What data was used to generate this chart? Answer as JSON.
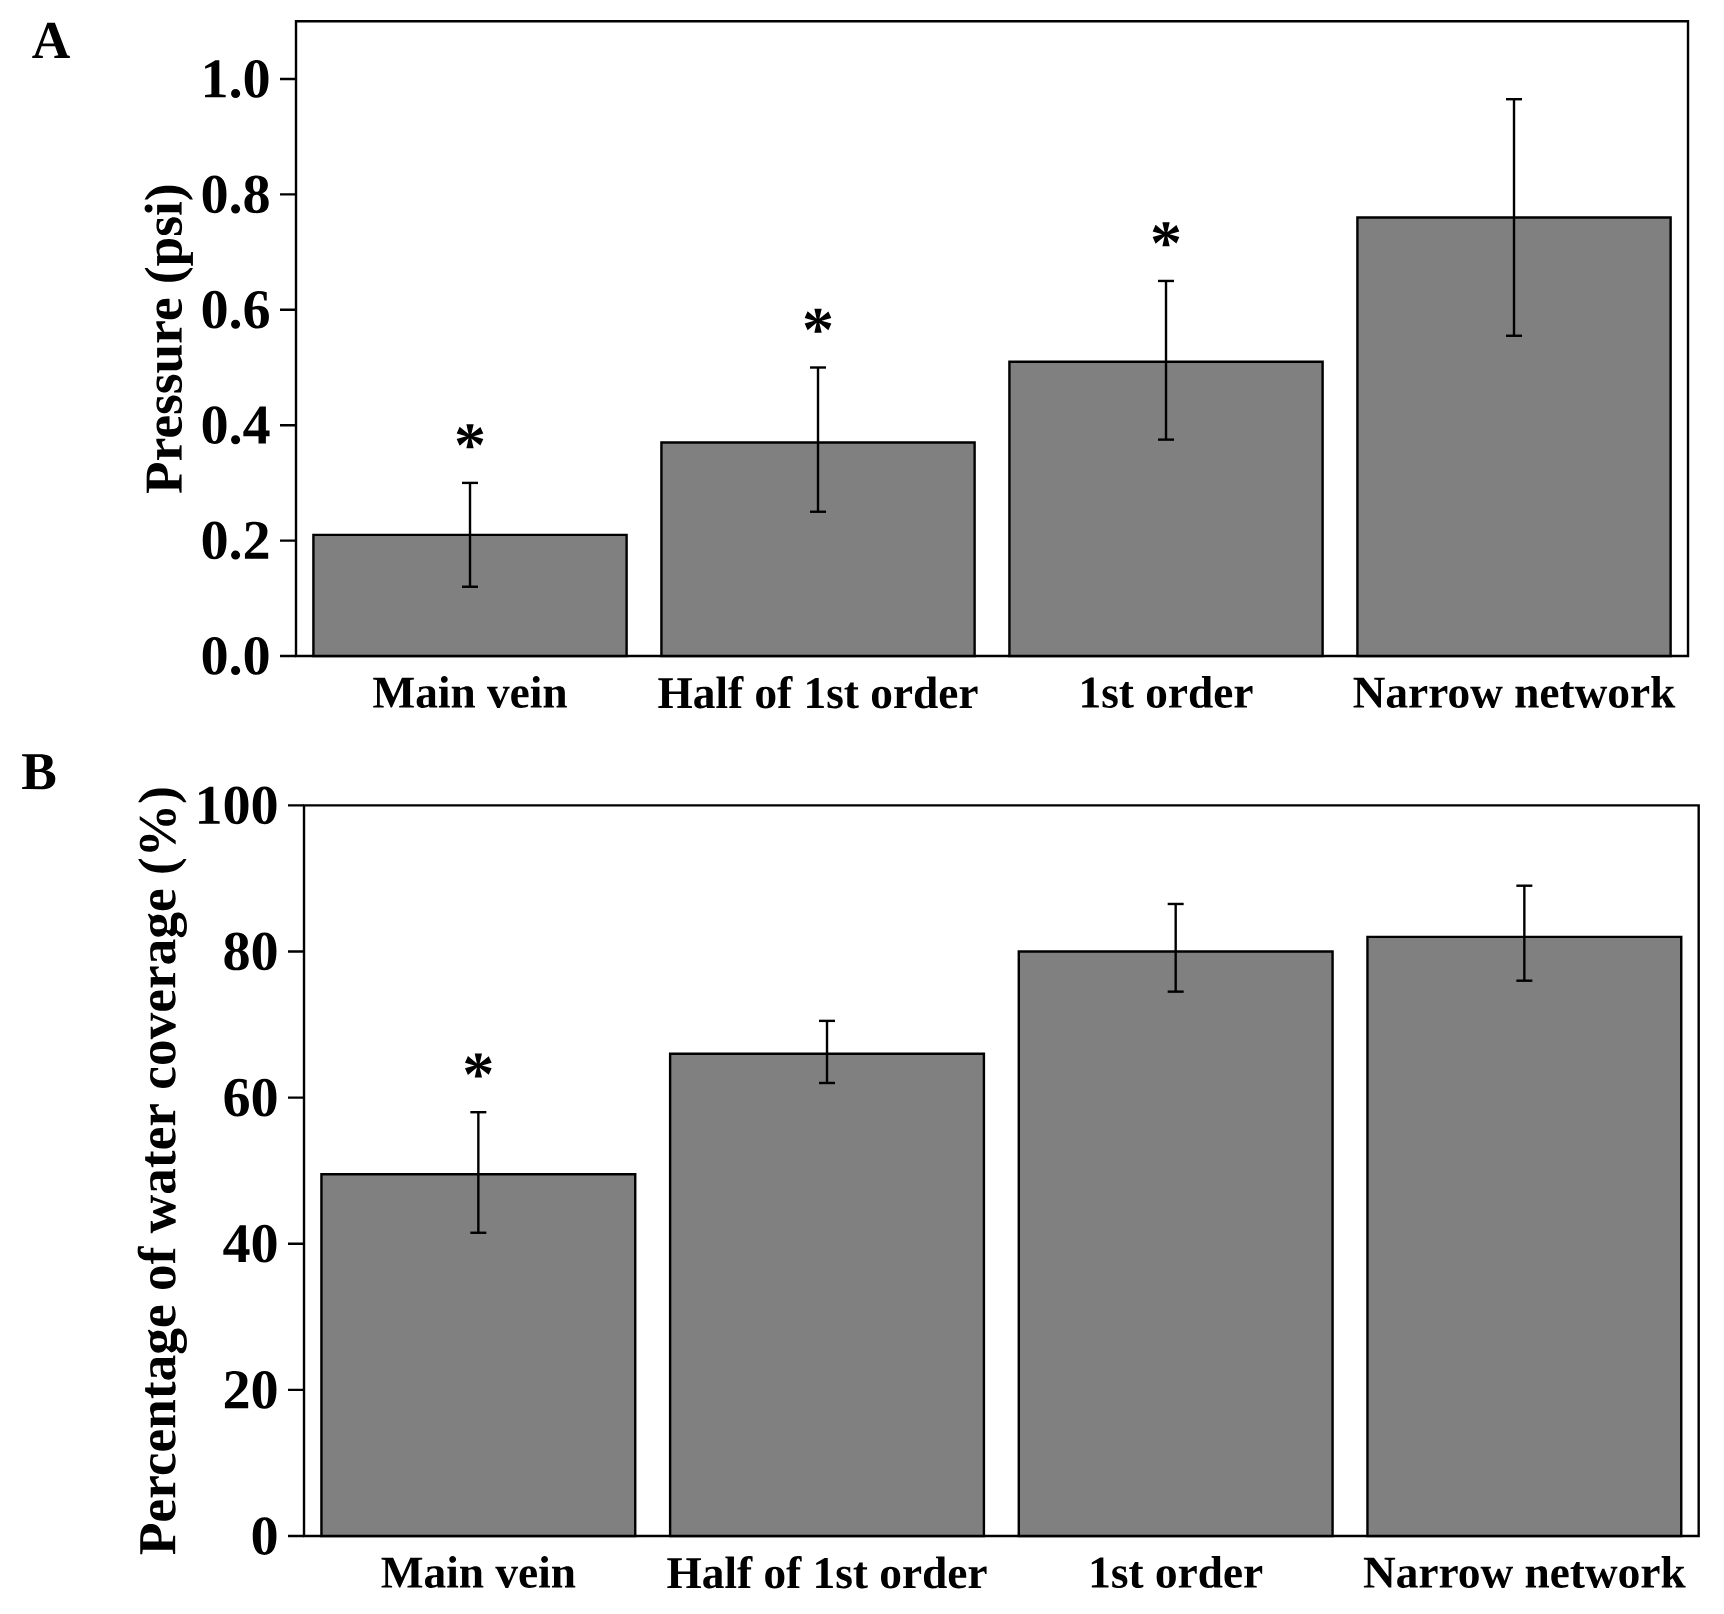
{
  "chart_data": [
    {
      "type": "bar",
      "title": "A",
      "ylabel": "Pressure (psi)",
      "categories": [
        "Main vein",
        "Half of 1st order",
        "1st order",
        "Narrow network"
      ],
      "values": [
        0.21,
        0.37,
        0.51,
        0.76
      ],
      "errors": [
        [
          0.12,
          0.3
        ],
        [
          0.25,
          0.5
        ],
        [
          0.375,
          0.65
        ],
        [
          0.555,
          0.965
        ]
      ],
      "color": "#808080",
      "ylim": [
        0,
        1.1
      ],
      "yticks": [
        {
          "value": 0,
          "label": "0.0"
        },
        0.2,
        0.4,
        0.6,
        0.8,
        {
          "value": 1,
          "label": "1.0"
        }
      ],
      "annotations": [
        "*",
        "*",
        "*"
      ]
    },
    {
      "type": "bar",
      "title": "B",
      "ylabel": "Percentage of water coverage (%)",
      "categories": [
        "Main vein",
        "Half of 1st order",
        "1st order",
        "Narrow network"
      ],
      "values": [
        49.5,
        66,
        80,
        82
      ],
      "errors": [
        [
          41.5,
          58
        ],
        [
          62,
          70.5
        ],
        [
          74.5,
          86.5
        ],
        [
          76,
          89
        ]
      ],
      "color": "#808080",
      "ylim": [
        0,
        100
      ],
      "yticks": [
        0,
        20,
        40,
        60,
        80,
        100
      ],
      "annotations": [
        "*"
      ]
    }
  ]
}
